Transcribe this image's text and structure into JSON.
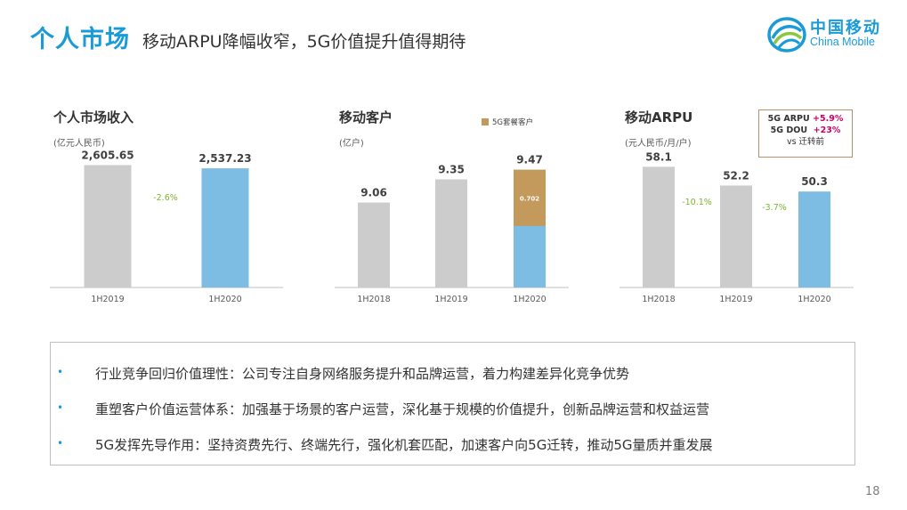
{
  "header": {
    "title": "个人市场",
    "subtitle": "移动ARPU降幅收窄，5G价值提升值得期待"
  },
  "logo": {
    "cn": "中国移动",
    "en": "China Mobile"
  },
  "colors": {
    "accent": "#1a9bd7",
    "bar_gray": "#cccccc",
    "bar_blue": "#7dbde3",
    "bar_5g": "#c49a5c",
    "change_green": "#7cb530",
    "highlight": "#cc0066"
  },
  "chart_data": [
    {
      "type": "bar",
      "title": "个人市场收入",
      "unit": "(亿元人民币)",
      "categories": [
        "1H2019",
        "1H2020"
      ],
      "values": [
        2605.65,
        2537.23
      ],
      "value_labels": [
        "2,605.65",
        "2,537.23"
      ],
      "changes": [
        "-2.6%"
      ],
      "ylim": [
        0,
        2900
      ]
    },
    {
      "type": "bar",
      "title": "移动客户",
      "unit": "(亿户)",
      "categories": [
        "1H2018",
        "1H2019",
        "1H2020"
      ],
      "values": [
        9.06,
        9.35,
        9.47
      ],
      "value_labels": [
        "9.06",
        "9.35",
        "9.47"
      ],
      "stacked_5g": {
        "name": "5G套餐客户",
        "value": 0.702,
        "label": "0.702"
      },
      "ylim": [
        8.0,
        9.7
      ]
    },
    {
      "type": "bar",
      "title": "移动ARPU",
      "unit": "(元人民币/月/户)",
      "categories": [
        "1H2018",
        "1H2019",
        "1H2020"
      ],
      "values": [
        58.1,
        52.2,
        50.3
      ],
      "value_labels": [
        "58.1",
        "52.2",
        "50.3"
      ],
      "changes": [
        "-10.1%",
        "-3.7%"
      ],
      "ylim": [
        20,
        63
      ]
    }
  ],
  "note": {
    "line1_prefix": "5G ARPU ",
    "line1_value": "+5.9%",
    "line2_prefix": "5G DOU  ",
    "line2_value": "+23%",
    "line3": "vs 迁转前"
  },
  "bullets": [
    "行业竞争回归价值理性：公司专注自身网络服务提升和品牌运营，着力构建差异化竞争优势",
    "重塑客户价值运营体系：加强基于场景的客户运营，深化基于规模的价值提升，创新品牌运营和权益运营",
    "5G发挥先导作用：坚持资费先行、终端先行，强化机套匹配，加速客户向5G迁转，推动5G量质并重发展"
  ],
  "bullet_marker": "•",
  "page_number": "18"
}
